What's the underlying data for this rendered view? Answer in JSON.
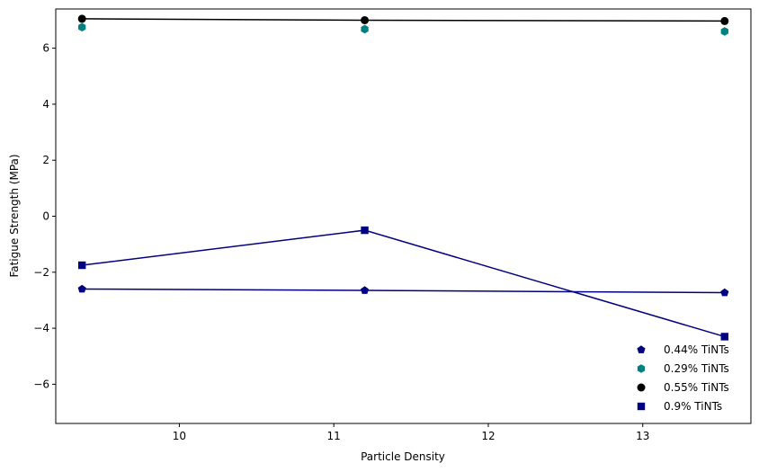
{
  "chart_data": {
    "type": "line",
    "title": "",
    "xlabel": "Particle Density",
    "ylabel": "Fatigue Strength (MPa)",
    "xlim": [
      9.2,
      13.7
    ],
    "ylim": [
      -7.4,
      7.4
    ],
    "xticks": [
      10,
      11,
      12,
      13
    ],
    "yticks": [
      -6,
      -4,
      -2,
      0,
      2,
      4,
      6
    ],
    "grid": false,
    "legend_position": "lower-right",
    "series": [
      {
        "name": "0.44% TiNTs",
        "color": "#000080",
        "marker": "pentagon",
        "line": true,
        "x": [
          9.37,
          11.2,
          13.53
        ],
        "y": [
          -2.6,
          -2.65,
          -2.73
        ]
      },
      {
        "name": "0.29% TiNTs",
        "color": "#008080",
        "marker": "hexagon",
        "line": false,
        "x": [
          9.37,
          11.2,
          13.53
        ],
        "y": [
          6.75,
          6.68,
          6.6
        ]
      },
      {
        "name": "0.55% TiNTs",
        "color": "#000000",
        "marker": "circle",
        "line": true,
        "x": [
          9.37,
          11.2,
          13.53
        ],
        "y": [
          7.05,
          7.0,
          6.97
        ]
      },
      {
        "name": "0.9% TiNTs",
        "color": "#000080",
        "marker": "square",
        "line": true,
        "x": [
          9.37,
          11.2,
          13.53
        ],
        "y": [
          -1.75,
          -0.5,
          -4.3
        ]
      }
    ]
  }
}
